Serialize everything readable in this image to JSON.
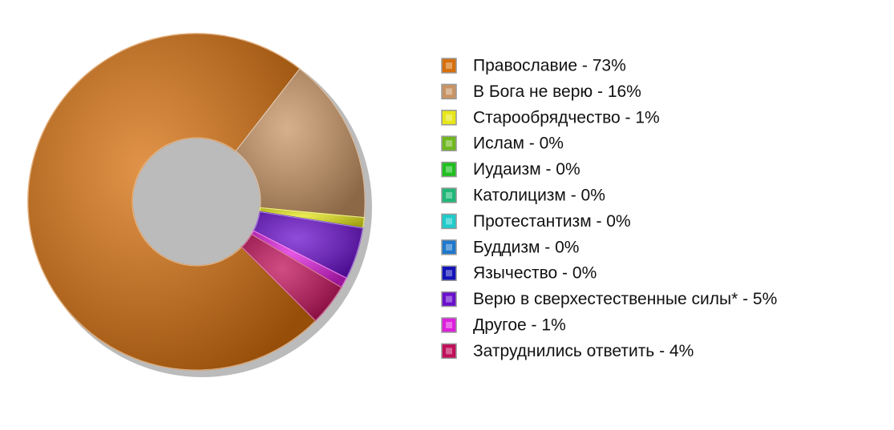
{
  "chart_data": {
    "type": "donut",
    "categories": [
      "Православие - 73%",
      "В Бога не верю - 16%",
      "Старообрядчество - 1%",
      "Ислам - 0%",
      "Иудаизм - 0%",
      "Католицизм - 0%",
      "Протестантизм - 0%",
      "Буддизм - 0%",
      "Язычество - 0%",
      "Верю в сверхестественные силы* - 5%",
      "Другое - 1%",
      "Затруднились ответить - 4%"
    ],
    "values": [
      73,
      16,
      1,
      0,
      0,
      0,
      0,
      0,
      0,
      5,
      1,
      4
    ],
    "colors": [
      "#d66f0c",
      "#c89464",
      "#e6e61a",
      "#6fb81e",
      "#1fbf1f",
      "#1fb878",
      "#1fcccc",
      "#1f78cc",
      "#1212b8",
      "#6a10cc",
      "#dd1fdd",
      "#c0105a"
    ]
  }
}
